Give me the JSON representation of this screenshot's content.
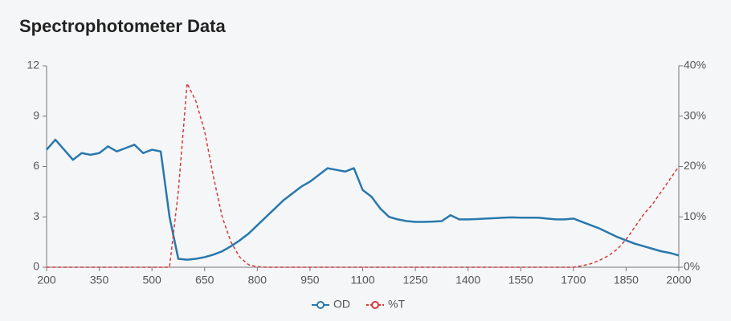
{
  "chart_data": {
    "type": "line",
    "title": "Spectrophotometer Data",
    "x": [
      200,
      225,
      250,
      275,
      300,
      325,
      350,
      375,
      400,
      425,
      450,
      475,
      500,
      525,
      550,
      575,
      600,
      625,
      650,
      675,
      700,
      725,
      750,
      775,
      800,
      825,
      850,
      875,
      900,
      925,
      950,
      975,
      1000,
      1025,
      1050,
      1075,
      1100,
      1125,
      1150,
      1175,
      1200,
      1225,
      1250,
      1275,
      1300,
      1325,
      1350,
      1375,
      1400,
      1425,
      1450,
      1475,
      1500,
      1525,
      1550,
      1575,
      1600,
      1625,
      1650,
      1675,
      1700,
      1725,
      1750,
      1775,
      1800,
      1825,
      1850,
      1875,
      1900,
      1925,
      1950,
      1975,
      2000
    ],
    "series": [
      {
        "name": "OD",
        "color": "#2878ae",
        "values": [
          7.0,
          7.6,
          7.0,
          6.4,
          6.8,
          6.7,
          6.8,
          7.2,
          6.9,
          7.1,
          7.3,
          6.8,
          7.0,
          6.9,
          3.0,
          0.5,
          0.45,
          0.5,
          0.6,
          0.75,
          0.95,
          1.25,
          1.6,
          2.0,
          2.5,
          3.0,
          3.5,
          4.0,
          4.4,
          4.8,
          5.1,
          5.5,
          5.9,
          5.8,
          5.7,
          5.9,
          4.6,
          4.2,
          3.5,
          3.0,
          2.85,
          2.75,
          2.7,
          2.7,
          2.72,
          2.75,
          3.1,
          2.85,
          2.85,
          2.87,
          2.9,
          2.92,
          2.95,
          2.97,
          2.95,
          2.95,
          2.95,
          2.9,
          2.85,
          2.85,
          2.9,
          2.7,
          2.5,
          2.3,
          2.05,
          1.8,
          1.6,
          1.4,
          1.25,
          1.1,
          0.95,
          0.85,
          0.7
        ]
      },
      {
        "name": "%T",
        "color": "#d63a3a",
        "axis": "y2",
        "dashed": true,
        "values": [
          0,
          0,
          0,
          0,
          0,
          0,
          0,
          0,
          0,
          0,
          0,
          0,
          0,
          0,
          0,
          15,
          36.5,
          33,
          27,
          18,
          10,
          5,
          2,
          0.5,
          0.1,
          0,
          0,
          0,
          0,
          0,
          0,
          0,
          0,
          0,
          0,
          0,
          0,
          0,
          0,
          0,
          0,
          0,
          0,
          0,
          0,
          0,
          0,
          0,
          0,
          0,
          0,
          0,
          0,
          0,
          0,
          0,
          0,
          0,
          0,
          0,
          0,
          0.3,
          0.7,
          1.4,
          2.3,
          3.6,
          5.5,
          8,
          10.5,
          12.5,
          15,
          17.5,
          20
        ]
      }
    ],
    "xlim": [
      200,
      2000
    ],
    "xticks": [
      200,
      350,
      500,
      650,
      800,
      950,
      1100,
      1250,
      1400,
      1550,
      1700,
      1850,
      2000
    ],
    "ylim": [
      0,
      12
    ],
    "yticks": [
      0,
      3,
      6,
      9,
      12
    ],
    "y2lim": [
      0,
      40
    ],
    "y2ticks": [
      {
        "value": 0,
        "label": "0%"
      },
      {
        "value": 10,
        "label": "10%"
      },
      {
        "value": 20,
        "label": "20%"
      },
      {
        "value": 30,
        "label": "30%"
      },
      {
        "value": 40,
        "label": "40%"
      }
    ],
    "legend": "bottom"
  }
}
